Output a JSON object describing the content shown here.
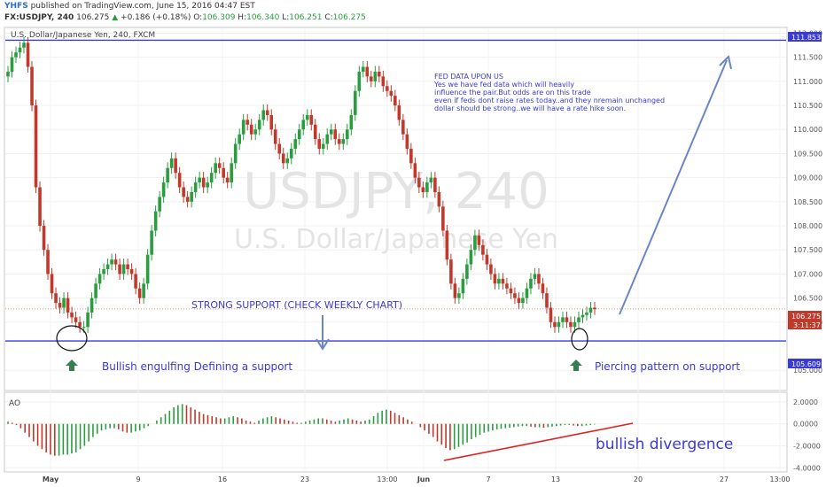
{
  "header": {
    "brand": "YHFS",
    "published": "published on TradingView.com, June 15, 2016 04:47 EST",
    "symbol": "FX:USDJPY, 240",
    "last": "106.275",
    "change_arrow": "▲",
    "change": "+0.186 (+0.18%)",
    "o_label": "O:",
    "o": "106.309",
    "h_label": "H:",
    "h": "106.340",
    "l_label": "L:",
    "l": "106.251",
    "c_label": "C:",
    "c": "106.275"
  },
  "pane_title": "U.S. Dollar/Japanese Yen, 240, FXCM",
  "watermark": {
    "symbol": "USDJPY, 240",
    "name": "U.S. Dollar/Japanese Yen"
  },
  "colors": {
    "up": "#2a9d3f",
    "down": "#c0392b",
    "hline": "#3a3ad6",
    "annotation": "#3a3ad6",
    "arrow": "#6a86c9",
    "divergence": "#e02020",
    "green_arrow": "#3b7d52"
  },
  "annotations": {
    "fed_title": "FED DATA UPON US",
    "fed_lines": [
      "Yes we have fed data which will heavily",
      "influence the pair.But odds are on this trade",
      "even if feds dont raise rates today..and they nremain unchanged",
      "dollar should be strong..we will have a rate hike soon."
    ],
    "support": "STRONG SUPPORT (CHECK WEEKLY CHART)",
    "engulfing": "Bullish engulfing Defining a support",
    "piercing": "Piercing pattern on support",
    "divergence": "bullish divergence"
  },
  "indicator": {
    "label": "AO"
  },
  "price_labels": {
    "top_line": "111.853",
    "support_line": "105.609",
    "last": "106.275",
    "timer": "3:11:37"
  },
  "chart_data": {
    "type": "line",
    "title": "U.S. Dollar/Japanese Yen, 240, FXCM",
    "ylim": [
      104.6,
      112.1
    ],
    "y_ticks": [
      "112.000",
      "111.500",
      "111.000",
      "110.500",
      "110.000",
      "109.500",
      "109.000",
      "108.500",
      "108.000",
      "107.500",
      "107.000",
      "106.500",
      "106.000",
      "105.000"
    ],
    "x_ticks": [
      "May",
      "9",
      "16",
      "23",
      "13:00",
      "Jun",
      "7",
      "13",
      "20",
      "27",
      "13:00"
    ],
    "horizontal_lines": [
      111.853,
      105.609
    ],
    "series": [
      {
        "values": [
          111.2,
          111.5,
          111.6,
          111.7,
          111.8,
          111.3,
          110.5,
          108.8,
          108.0,
          107.5,
          107.0,
          106.6,
          106.4,
          106.3,
          106.5,
          106.2,
          106.1,
          106.0,
          105.9,
          105.9,
          106.2,
          106.5,
          106.8,
          107.0,
          107.1,
          107.2,
          107.3,
          107.2,
          107.0,
          107.2,
          107.1,
          107.0,
          106.7,
          106.5,
          106.8,
          107.4,
          107.9,
          108.3,
          108.6,
          108.9,
          109.2,
          109.4,
          109.1,
          108.8,
          108.6,
          108.5,
          108.7,
          108.9,
          109.0,
          108.8,
          108.9,
          109.1,
          109.3,
          109.2,
          109.0,
          108.9,
          109.3,
          109.7,
          109.9,
          110.2,
          110.1,
          109.9,
          110.0,
          110.2,
          110.4,
          110.3,
          110.0,
          109.7,
          109.5,
          109.3,
          109.4,
          109.6,
          109.8,
          110.0,
          110.2,
          110.3,
          110.1,
          109.8,
          109.6,
          109.7,
          109.9,
          110.0,
          109.8,
          109.7,
          109.8,
          110.0,
          110.3,
          110.8,
          111.2,
          111.3,
          111.1,
          111.0,
          111.2,
          111.1,
          110.9,
          110.8,
          110.7,
          110.5,
          110.2,
          109.9,
          109.6,
          109.3,
          109.0,
          108.8,
          108.7,
          108.9,
          109.0,
          108.7,
          108.4,
          107.9,
          107.3,
          106.8,
          106.5,
          106.6,
          106.9,
          107.2,
          107.5,
          107.8,
          107.6,
          107.4,
          107.2,
          107.0,
          106.8,
          106.9,
          106.8,
          106.7,
          106.6,
          106.5,
          106.4,
          106.5,
          106.7,
          106.9,
          107.0,
          106.8,
          106.6,
          106.3,
          106.0,
          105.9,
          106.0,
          106.1,
          106.0,
          105.9,
          106.0,
          106.1,
          106.15,
          106.2,
          106.3,
          106.27
        ]
      }
    ],
    "ao": {
      "ylim": [
        -4.3,
        2.8
      ],
      "y_ticks": [
        "2.0000",
        "0.0000",
        "-2.0000",
        "-4.0000"
      ],
      "values": [
        0.2,
        0.1,
        -0.1,
        -0.4,
        -0.8,
        -1.2,
        -1.6,
        -2.0,
        -2.3,
        -2.6,
        -2.8,
        -2.9,
        -2.9,
        -2.8,
        -2.8,
        -2.7,
        -2.6,
        -2.3,
        -2.0,
        -1.6,
        -1.2,
        -0.9,
        -0.6,
        -0.5,
        -0.4,
        -0.4,
        -0.5,
        -0.7,
        -0.8,
        -0.8,
        -0.7,
        -0.6,
        -0.4,
        -0.2,
        0.0,
        0.3,
        0.6,
        0.9,
        1.2,
        1.5,
        1.7,
        1.8,
        1.7,
        1.5,
        1.3,
        1.1,
        0.9,
        0.8,
        0.7,
        0.6,
        0.5,
        0.5,
        0.6,
        0.7,
        0.6,
        0.5,
        0.3,
        0.2,
        0.1,
        0.3,
        0.5,
        0.6,
        0.7,
        0.6,
        0.5,
        0.4,
        0.3,
        0.2,
        0.1,
        0.1,
        0.2,
        0.3,
        0.4,
        0.5,
        0.5,
        0.4,
        0.3,
        0.2,
        0.3,
        0.4,
        0.5,
        0.4,
        0.3,
        0.2,
        0.3,
        0.4,
        0.7,
        1.0,
        1.2,
        1.3,
        1.2,
        1.0,
        0.8,
        0.6,
        0.4,
        0.2,
        0.0,
        -0.3,
        -0.6,
        -0.9,
        -1.2,
        -1.6,
        -1.9,
        -2.2,
        -2.4,
        -2.3,
        -2.1,
        -1.9,
        -1.7,
        -1.4,
        -1.2,
        -1.0,
        -0.8,
        -0.7,
        -0.6,
        -0.5,
        -0.45,
        -0.4,
        -0.35,
        -0.3,
        -0.25,
        -0.2,
        -0.2,
        -0.25,
        -0.3,
        -0.3,
        -0.35,
        -0.3,
        -0.25,
        -0.2,
        -0.15,
        -0.1,
        -0.1,
        -0.15,
        -0.2,
        -0.2,
        -0.15,
        -0.1,
        -0.05
      ]
    }
  }
}
